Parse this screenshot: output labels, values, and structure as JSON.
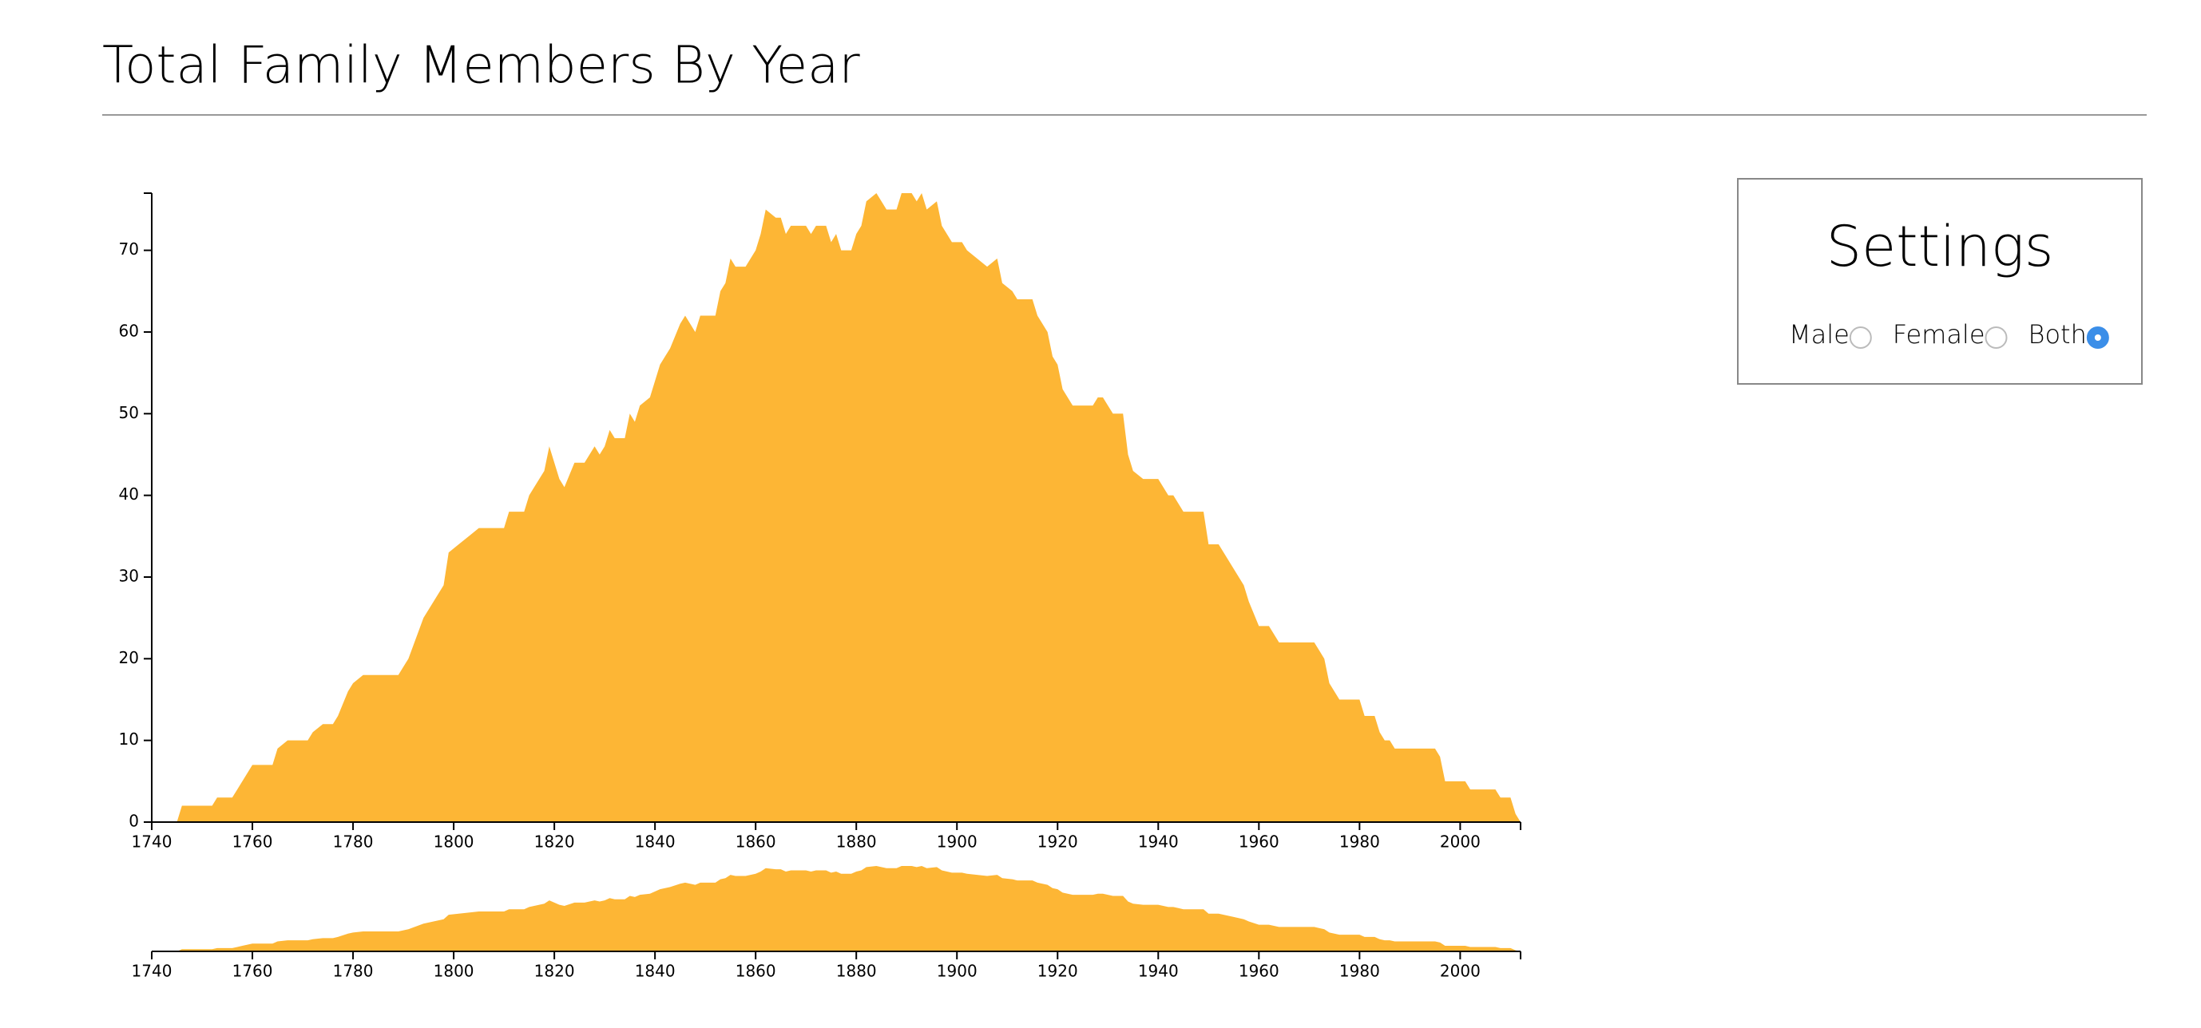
{
  "title": "Total Family Members By Year",
  "settings": {
    "title": "Settings",
    "options": [
      "Male",
      "Female",
      "Both"
    ],
    "selected": 2
  },
  "chart_data": {
    "type": "area",
    "color": "#fdb635",
    "x": [
      1745,
      1746,
      1752,
      1753,
      1756,
      1757,
      1758,
      1760,
      1764,
      1765,
      1767,
      1771,
      1772,
      1774,
      1776,
      1777,
      1779,
      1780,
      1782,
      1789,
      1790,
      1791,
      1794,
      1798,
      1799,
      1801,
      1803,
      1805,
      1810,
      1811,
      1814,
      1815,
      1816,
      1818,
      1819,
      1821,
      1822,
      1824,
      1826,
      1827,
      1828,
      1829,
      1830,
      1831,
      1832,
      1834,
      1835,
      1836,
      1837,
      1839,
      1841,
      1842,
      1843,
      1845,
      1846,
      1847,
      1848,
      1849,
      1852,
      1853,
      1854,
      1855,
      1856,
      1858,
      1860,
      1861,
      1862,
      1864,
      1865,
      1866,
      1867,
      1870,
      1871,
      1872,
      1874,
      1875,
      1876,
      1877,
      1879,
      1880,
      1881,
      1882,
      1884,
      1885,
      1886,
      1888,
      1889,
      1891,
      1892,
      1893,
      1894,
      1896,
      1897,
      1899,
      1901,
      1902,
      1904,
      1906,
      1908,
      1909,
      1911,
      1912,
      1915,
      1916,
      1918,
      1919,
      1920,
      1921,
      1923,
      1927,
      1928,
      1929,
      1930,
      1931,
      1933,
      1934,
      1935,
      1937,
      1940,
      1941,
      1942,
      1943,
      1944,
      1945,
      1949,
      1950,
      1952,
      1953,
      1955,
      1957,
      1958,
      1960,
      1962,
      1963,
      1964,
      1971,
      1973,
      1974,
      1976,
      1980,
      1981,
      1983,
      1984,
      1985,
      1986,
      1987,
      1995,
      1996,
      1997,
      2001,
      2002,
      2007,
      2008,
      2010,
      2011,
      2012
    ],
    "values": [
      0,
      2,
      2,
      3,
      3,
      4,
      5,
      7,
      7,
      9,
      10,
      10,
      11,
      12,
      12,
      13,
      16,
      17,
      18,
      18,
      19,
      20,
      25,
      29,
      33,
      34,
      35,
      36,
      36,
      38,
      38,
      40,
      41,
      43,
      46,
      42,
      41,
      44,
      44,
      45,
      46,
      45,
      46,
      48,
      47,
      47,
      50,
      49,
      51,
      52,
      56,
      57,
      58,
      61,
      62,
      61,
      60,
      62,
      62,
      65,
      66,
      69,
      68,
      68,
      70,
      72,
      75,
      74,
      74,
      72,
      73,
      73,
      72,
      73,
      73,
      71,
      72,
      70,
      70,
      72,
      73,
      76,
      77,
      76,
      75,
      75,
      77,
      77,
      76,
      77,
      75,
      76,
      73,
      71,
      71,
      70,
      69,
      68,
      69,
      66,
      65,
      64,
      64,
      62,
      60,
      57,
      56,
      53,
      51,
      51,
      52,
      52,
      51,
      50,
      50,
      45,
      43,
      42,
      42,
      41,
      40,
      40,
      39,
      38,
      38,
      34,
      34,
      33,
      31,
      29,
      27,
      24,
      24,
      23,
      22,
      22,
      20,
      17,
      15,
      15,
      13,
      13,
      11,
      10,
      10,
      9,
      9,
      8,
      5,
      5,
      4,
      4,
      3,
      3,
      1,
      0
    ],
    "xlim": [
      1740,
      2012
    ],
    "xticks": [
      1740,
      1760,
      1780,
      1800,
      1820,
      1840,
      1860,
      1880,
      1900,
      1920,
      1940,
      1960,
      1980,
      2000
    ],
    "ylim": [
      0,
      77
    ],
    "yticks": [
      0,
      10,
      20,
      30,
      40,
      50,
      60,
      70
    ]
  }
}
